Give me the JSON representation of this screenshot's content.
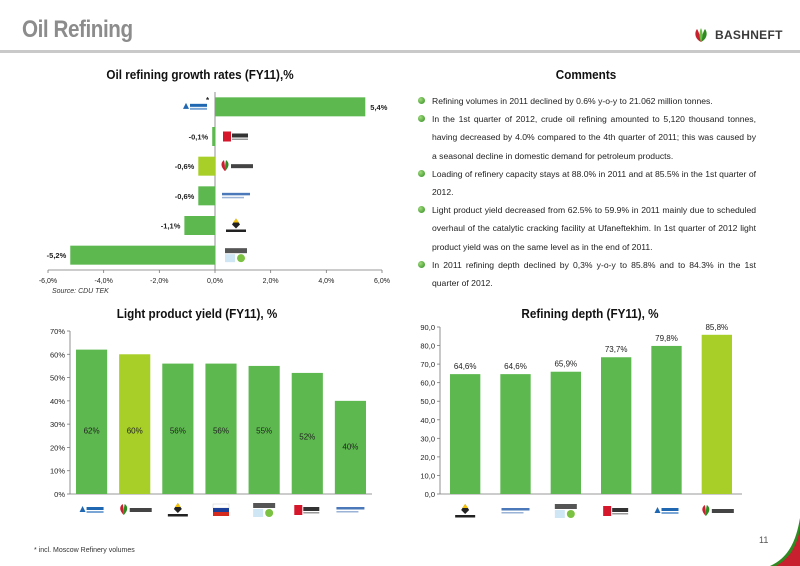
{
  "slide": {
    "title": "Oil Refining",
    "brand": "BASHNEFT",
    "page_number": "11",
    "footnote": "* incl. Moscow Refinery volumes",
    "accent_green": "#5db84f",
    "highlight_green": "#a7cf28"
  },
  "comments": {
    "title": "Comments",
    "items": [
      "Refining volumes in 2011 declined by 0.6% y-o-y to 21.062 million tonnes.",
      "In the 1st quarter of 2012, crude oil refining amounted to 5,120 thousand tonnes, having decreased by 4.0% compared to the 4th quarter of 2011; this was caused by a seasonal decline in domestic demand for petroleum products.",
      "Loading of refinery capacity stays at 88.0% in 2011 and at 85.5% in the 1st quarter of 2012.",
      "Light product yield decreased from 62.5% to 59.9% in 2011 mainly due to scheduled overhaul of the catalytic cracking facility at Ufaneftekhim. In 1st quarter of 2012 light product yield was on the same level as in the end of 2011.",
      "In 2011 refining depth declined by 0,3% y-o-y to 85.8% and to 84.3% in the 1st quarter of 2012."
    ]
  },
  "chart_data": [
    {
      "type": "bar",
      "orientation": "horizontal",
      "title": "Oil refining growth rates (FY11),%",
      "source": "Source: CDU TEK",
      "categories": [
        "Gazprom Neft",
        "LUKOIL",
        "BASHNEFT",
        "Surgutneftegas",
        "Rosneft",
        "TNK-BP"
      ],
      "category_icons": [
        "gazprom-neft-logo-icon",
        "lukoil-logo-icon",
        "bashneft-logo-icon",
        "surgutneftegas-logo-icon",
        "rosneft-logo-icon",
        "tnk-bp-logo-icon"
      ],
      "values": [
        5.4,
        -0.1,
        -0.6,
        -0.6,
        -1.1,
        -5.2
      ],
      "value_labels": [
        "5,4%",
        "-0,1%",
        "-0,6%",
        "-0,6%",
        "-1,1%",
        "-5,2%"
      ],
      "asterisk_on": "Gazprom Neft",
      "asterisk": "*",
      "highlight": "BASHNEFT",
      "xlim": [
        -6,
        6
      ],
      "ticks": [
        "-6,0%",
        "-4,0%",
        "-2,0%",
        "0,0%",
        "2,0%",
        "4,0%",
        "6,0%"
      ],
      "grid": false,
      "legend": "none"
    },
    {
      "type": "bar",
      "title": "Light product yield (FY11), %",
      "categories": [
        "Gazprom Neft",
        "BASHNEFT",
        "Rosneft",
        "Russia",
        "TNK-BP",
        "LUKOIL",
        "Surgutneftegas"
      ],
      "category_icons": [
        "gazprom-neft-logo-icon",
        "bashneft-logo-icon",
        "rosneft-logo-icon",
        "russia-flag-icon",
        "tnk-bp-logo-icon",
        "lukoil-logo-icon",
        "surgutneftegas-logo-icon"
      ],
      "values": [
        62,
        60,
        56,
        56,
        55,
        52,
        40
      ],
      "value_labels": [
        "62%",
        "60%",
        "56%",
        "56%",
        "55%",
        "52%",
        "40%"
      ],
      "highlight": "BASHNEFT",
      "ylim": [
        0,
        70
      ],
      "ticks": [
        "0%",
        "10%",
        "20%",
        "30%",
        "40%",
        "50%",
        "60%",
        "70%"
      ],
      "grid": false,
      "legend": "none"
    },
    {
      "type": "bar",
      "title": "Refining depth (FY11), %",
      "categories": [
        "Rosneft",
        "Surgutneftegas",
        "TNK-BP",
        "LUKOIL",
        "Gazprom Neft",
        "BASHNEFT"
      ],
      "category_icons": [
        "rosneft-logo-icon",
        "surgutneftegas-logo-icon",
        "tnk-bp-logo-icon",
        "lukoil-logo-icon",
        "gazprom-neft-logo-icon",
        "bashneft-logo-icon"
      ],
      "values": [
        64.6,
        64.6,
        65.9,
        73.7,
        79.8,
        85.8
      ],
      "value_labels": [
        "64,6%",
        "64,6%",
        "65,9%",
        "73,7%",
        "79,8%",
        "85,8%"
      ],
      "highlight": "BASHNEFT",
      "ylim": [
        0,
        90
      ],
      "ticks": [
        "0,0",
        "10,0",
        "20,0",
        "30,0",
        "40,0",
        "50,0",
        "60,0",
        "70,0",
        "80,0",
        "90,0"
      ],
      "grid": false,
      "legend": "none"
    }
  ]
}
